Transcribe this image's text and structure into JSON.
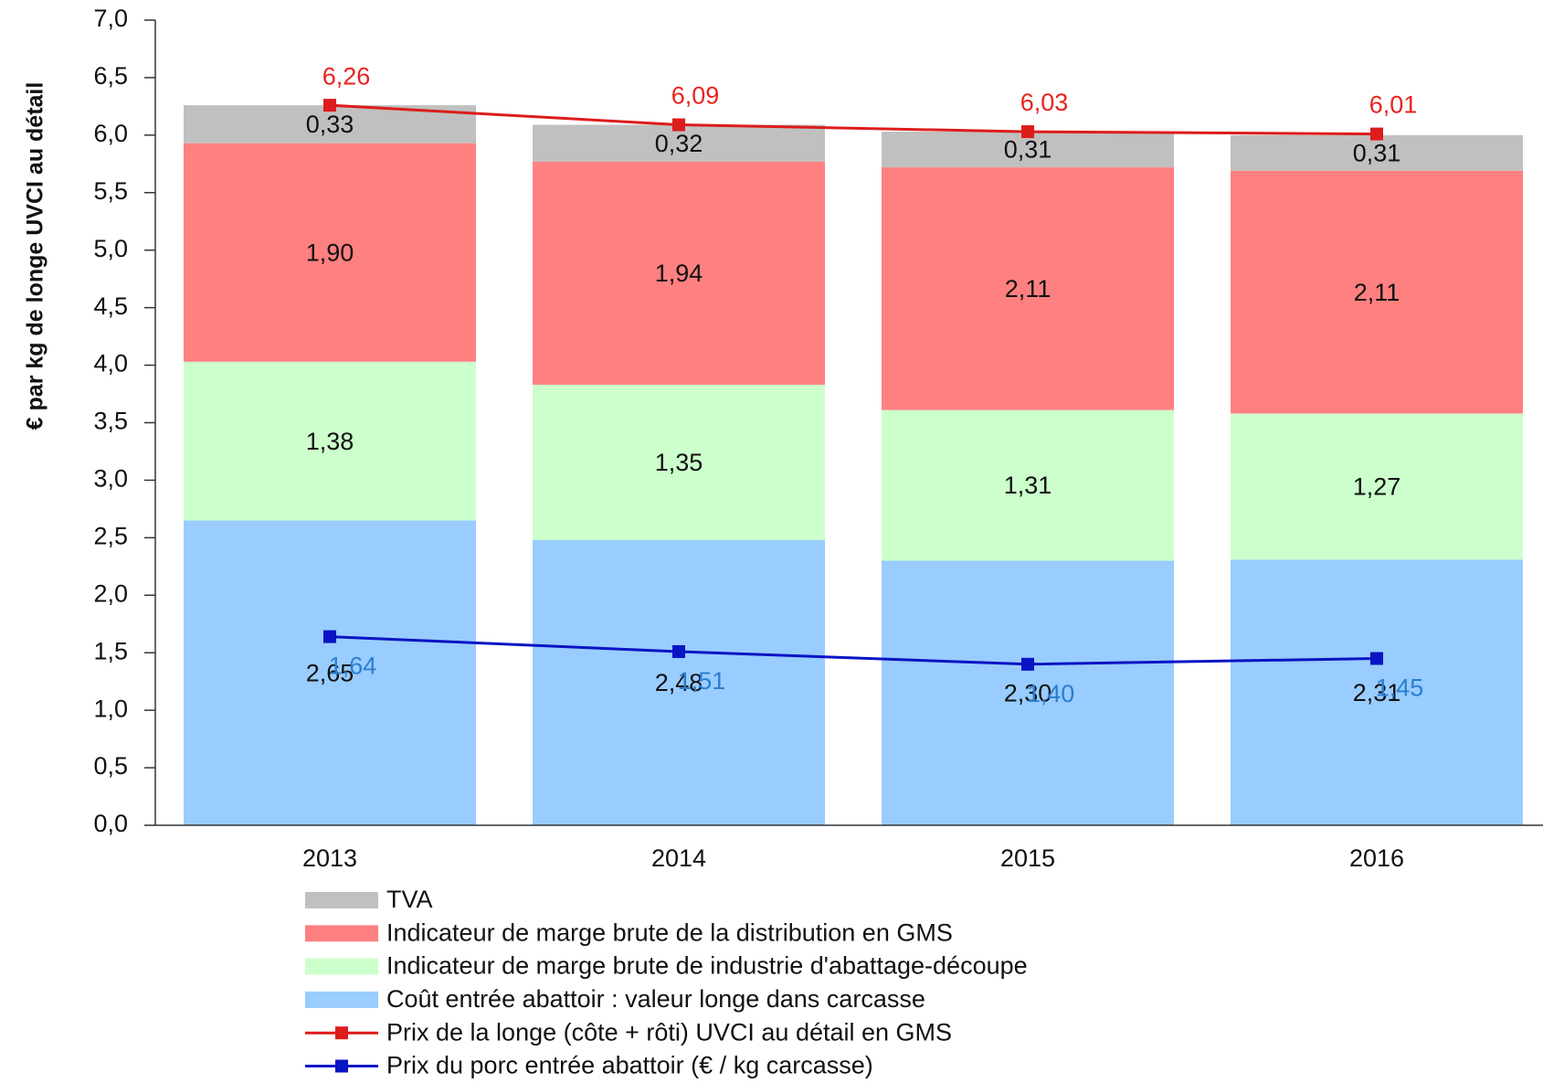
{
  "chart_data": {
    "type": "bar",
    "y_label": "€ par kg de longe UVCI au détail",
    "categories": [
      "2013",
      "2014",
      "2015",
      "2016"
    ],
    "series": [
      {
        "name": "TVA",
        "type": "bar",
        "color": "#c0c0c0",
        "values": [
          0.33,
          0.32,
          0.31,
          0.31
        ],
        "value_labels": [
          "0,33",
          "0,32",
          "0,31",
          "0,31"
        ]
      },
      {
        "name": "Indicateur de marge brute de la distribution en GMS",
        "type": "bar",
        "color": "#ff8080",
        "values": [
          1.9,
          1.94,
          2.11,
          2.11
        ],
        "value_labels": [
          "1,90",
          "1,94",
          "2,11",
          "2,11"
        ]
      },
      {
        "name": "Indicateur de marge brute de industrie d'abattage-découpe",
        "type": "bar",
        "color": "#ccffcc",
        "values": [
          1.38,
          1.35,
          1.31,
          1.27
        ],
        "value_labels": [
          "1,38",
          "1,35",
          "1,31",
          "1,27"
        ]
      },
      {
        "name": "Coût entrée abattoir : valeur longe dans carcasse",
        "type": "bar",
        "color": "#99ccff",
        "values": [
          2.65,
          2.48,
          2.3,
          2.31
        ],
        "value_labels": [
          "2,65",
          "2,48",
          "2,30",
          "2,31"
        ]
      },
      {
        "name": "Prix de la longe (côte + rôti) UVCI au détail en GMS",
        "type": "line",
        "color": "#dd1c1c",
        "label_color": "#e8231f",
        "values": [
          6.26,
          6.09,
          6.03,
          6.01
        ],
        "value_labels": [
          "6,26",
          "6,09",
          "6,03",
          "6,01"
        ]
      },
      {
        "name": "Prix du porc entrée abattoir (€ / kg carcasse)",
        "type": "line",
        "color": "#0a14c4",
        "label_color": "#2a7fd0",
        "values": [
          1.64,
          1.51,
          1.4,
          1.45
        ],
        "value_labels": [
          "1,64",
          "1,51",
          "1,40",
          "1,45"
        ]
      }
    ],
    "ylim": [
      0,
      7
    ],
    "yticks": [
      {
        "value": 0,
        "label": "0,0"
      },
      {
        "value": 0.5,
        "label": "0,5"
      },
      {
        "value": 1,
        "label": "1,0"
      },
      {
        "value": 1.5,
        "label": "1,5"
      },
      {
        "value": 2,
        "label": "2,0"
      },
      {
        "value": 2.5,
        "label": "2,5"
      },
      {
        "value": 3,
        "label": "3,0"
      },
      {
        "value": 3.5,
        "label": "3,5"
      },
      {
        "value": 4,
        "label": "4,0"
      },
      {
        "value": 4.5,
        "label": "4,5"
      },
      {
        "value": 5,
        "label": "5,0"
      },
      {
        "value": 5.5,
        "label": "5,5"
      },
      {
        "value": 6,
        "label": "6,0"
      },
      {
        "value": 6.5,
        "label": "6,5"
      },
      {
        "value": 7,
        "label": "7,0"
      }
    ],
    "grid": false
  }
}
